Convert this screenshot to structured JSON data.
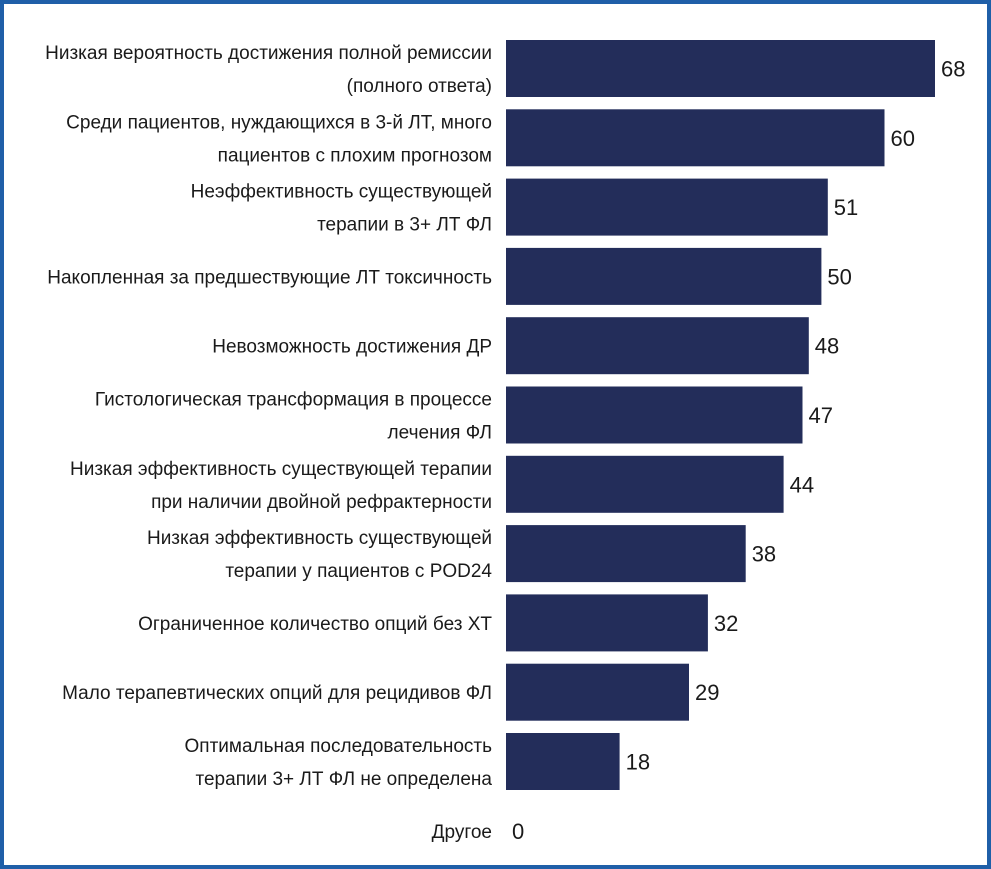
{
  "chart_data": {
    "type": "bar",
    "orientation": "horizontal",
    "categories": [
      [
        "Низкая вероятность достижения полной ремиссии",
        "(полного ответа)"
      ],
      [
        "Среди пациентов, нуждающихся в 3-й ЛТ, много",
        "пациентов с плохим прогнозом"
      ],
      [
        "Неэффективность существующей",
        "терапии в 3+ ЛТ ФЛ"
      ],
      [
        "Накопленная за предшествующие ЛТ токсичность"
      ],
      [
        "Невозможность достижения ДР"
      ],
      [
        "Гистологическая трансформация в процессе",
        "лечения ФЛ"
      ],
      [
        "Низкая эффективность существующей терапии",
        "при наличии двойной рефрактерности"
      ],
      [
        "Низкая эффективность существующей",
        "терапии у пациентов с POD24"
      ],
      [
        "Ограниченное количество опций без ХТ"
      ],
      [
        "Мало терапевтических опций для рецидивов ФЛ"
      ],
      [
        "Оптимальная последовательность",
        "терапии 3+ ЛТ ФЛ не определена"
      ],
      [
        "Другое"
      ]
    ],
    "values": [
      68,
      60,
      51,
      50,
      48,
      47,
      44,
      38,
      32,
      29,
      18,
      0
    ],
    "xlim": [
      0,
      68
    ],
    "bar_color": "#232d5a",
    "grid": false,
    "legend": "none"
  },
  "colors": {
    "frame_border": "#1f5fa8",
    "background": "#ffffff",
    "text": "#1a1a1a"
  }
}
